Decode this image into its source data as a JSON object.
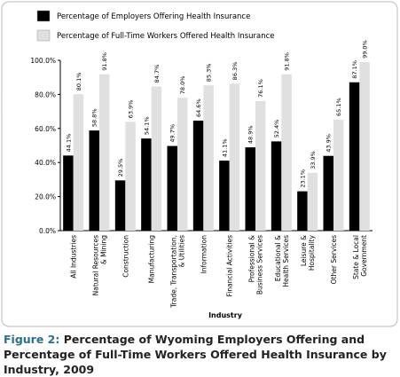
{
  "chart_data": {
    "type": "bar",
    "x_label": "Industry",
    "categories": [
      "All Industries",
      "Natural Resources\n& Mining",
      "Construction",
      "Manufacturing",
      "Trade, Transportation,\n& Utilities",
      "Information",
      "Financial Activities",
      "Professional &\nBusiness Services",
      "Educational &\nHealth Services",
      "Leisure &\nHospitality",
      "Other Services",
      "State & Local\nGovernment"
    ],
    "series": [
      {
        "name": "Percentage of Employers Offering Health Insurance",
        "color": "#000000",
        "values": [
          44.1,
          58.8,
          29.5,
          54.1,
          49.7,
          64.6,
          41.1,
          48.9,
          52.4,
          23.1,
          43.9,
          87.1
        ],
        "value_labels": [
          "44.1%",
          "58.8%",
          "29.5%",
          "54.1%",
          "49.7%",
          "64.6%",
          "41.1%",
          "48.9%",
          "52.4%",
          "23.1%",
          "43.9%",
          "87.1%"
        ]
      },
      {
        "name": "Percentage of Full-Time Workers Offered Health Insurance",
        "color": "#e0e0e0",
        "values": [
          80.1,
          91.8,
          63.9,
          84.7,
          78.0,
          85.3,
          86.3,
          76.1,
          91.8,
          33.9,
          65.1,
          99.0
        ],
        "value_labels": [
          "80.1%",
          "91.8%",
          "63.9%",
          "84.7%",
          "78.0%",
          "85.3%",
          "86.3%",
          "76.1%",
          "91.8%",
          "33.9%",
          "65.1%",
          "99.0%"
        ]
      }
    ],
    "ylim": [
      0,
      100
    ],
    "yticks": [
      {
        "value": 0,
        "label": "0.0%"
      },
      {
        "value": 20,
        "label": "20.0%"
      },
      {
        "value": 40,
        "label": "40.0%"
      },
      {
        "value": 60,
        "label": "60.0%"
      },
      {
        "value": 80,
        "label": "80.0%"
      },
      {
        "value": 100,
        "label": "100.0%"
      }
    ]
  },
  "caption": {
    "label": "Figure 2:",
    "text": "Percentage of Wyoming Employers Offering and Percentage of Full-Time Workers Offered Health Insurance by Industry, 2009"
  }
}
